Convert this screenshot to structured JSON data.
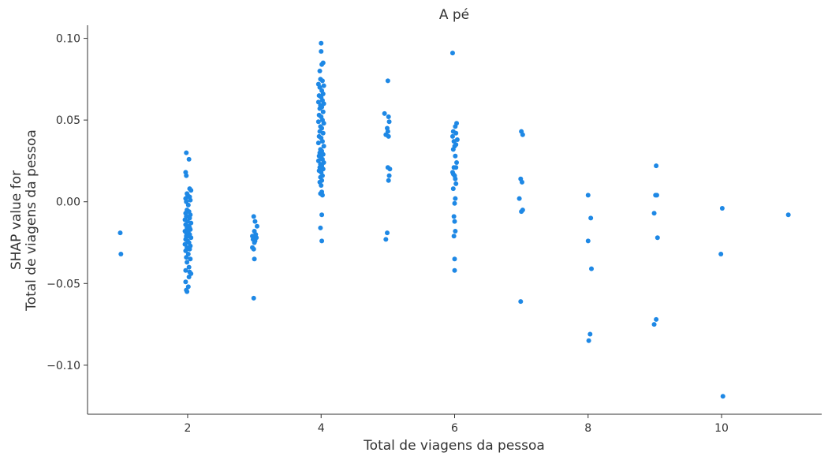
{
  "chart_data": {
    "type": "scatter",
    "title": "A pé",
    "xlabel": "Total de viagens da pessoa",
    "ylabel_lines": [
      "SHAP value for",
      "Total de viagens da pessoa"
    ],
    "xlim": [
      0.5,
      11.5
    ],
    "ylim": [
      -0.13,
      0.108
    ],
    "xticks": [
      2,
      4,
      6,
      8,
      10
    ],
    "xtick_labels": [
      "2",
      "4",
      "6",
      "8",
      "10"
    ],
    "yticks": [
      -0.1,
      -0.05,
      0.0,
      0.05,
      0.1
    ],
    "ytick_labels": [
      "−0.10",
      "−0.05",
      "0.00",
      "0.05",
      "0.10"
    ],
    "grid": false,
    "point_color": "#1e88e5",
    "series": [
      {
        "points": [
          [
            0.99,
            -0.019
          ],
          [
            1.0,
            -0.032
          ],
          [
            1.98,
            0.03
          ],
          [
            2.02,
            0.026
          ],
          [
            1.97,
            0.018
          ],
          [
            1.98,
            0.016
          ],
          [
            2.03,
            0.008
          ],
          [
            2.05,
            0.007
          ],
          [
            1.99,
            0.005
          ],
          [
            2.0,
            0.004
          ],
          [
            2.03,
            0.003
          ],
          [
            1.97,
            0.002
          ],
          [
            2.04,
            0.001
          ],
          [
            1.98,
            0.0
          ],
          [
            2.01,
            -0.002
          ],
          [
            1.99,
            -0.005
          ],
          [
            2.02,
            -0.006
          ],
          [
            1.97,
            -0.007
          ],
          [
            2.04,
            -0.008
          ],
          [
            1.98,
            -0.009
          ],
          [
            2.03,
            -0.01
          ],
          [
            1.96,
            -0.011
          ],
          [
            2.0,
            -0.012
          ],
          [
            2.05,
            -0.013
          ],
          [
            1.97,
            -0.014
          ],
          [
            2.02,
            -0.015
          ],
          [
            1.99,
            -0.016
          ],
          [
            2.04,
            -0.017
          ],
          [
            1.96,
            -0.018
          ],
          [
            2.01,
            -0.019
          ],
          [
            2.03,
            -0.02
          ],
          [
            1.98,
            -0.021
          ],
          [
            2.05,
            -0.022
          ],
          [
            1.97,
            -0.023
          ],
          [
            2.0,
            -0.024
          ],
          [
            2.02,
            -0.025
          ],
          [
            1.96,
            -0.026
          ],
          [
            2.04,
            -0.027
          ],
          [
            1.99,
            -0.028
          ],
          [
            2.03,
            -0.029
          ],
          [
            1.97,
            -0.03
          ],
          [
            2.01,
            -0.032
          ],
          [
            1.98,
            -0.034
          ],
          [
            2.04,
            -0.035
          ],
          [
            1.99,
            -0.037
          ],
          [
            2.02,
            -0.04
          ],
          [
            1.97,
            -0.042
          ],
          [
            2.03,
            -0.043
          ],
          [
            2.05,
            -0.044
          ],
          [
            2.02,
            -0.046
          ],
          [
            1.97,
            -0.049
          ],
          [
            2.01,
            -0.052
          ],
          [
            1.98,
            -0.054
          ],
          [
            1.99,
            -0.055
          ],
          [
            2.02,
            -0.02
          ],
          [
            1.98,
            -0.019
          ],
          [
            2.0,
            -0.018
          ],
          [
            2.01,
            -0.021
          ],
          [
            2.03,
            -0.016
          ],
          [
            2.99,
            -0.009
          ],
          [
            3.01,
            -0.012
          ],
          [
            3.04,
            -0.015
          ],
          [
            3.0,
            -0.018
          ],
          [
            3.02,
            -0.02
          ],
          [
            2.97,
            -0.021
          ],
          [
            3.03,
            -0.022
          ],
          [
            2.98,
            -0.023
          ],
          [
            3.01,
            -0.024
          ],
          [
            3.0,
            -0.025
          ],
          [
            2.97,
            -0.028
          ],
          [
            2.99,
            -0.029
          ],
          [
            3.0,
            -0.035
          ],
          [
            2.99,
            -0.059
          ],
          [
            4.0,
            0.097
          ],
          [
            4.0,
            0.092
          ],
          [
            4.03,
            0.085
          ],
          [
            4.01,
            0.084
          ],
          [
            3.98,
            0.08
          ],
          [
            3.99,
            0.075
          ],
          [
            4.02,
            0.074
          ],
          [
            3.96,
            0.072
          ],
          [
            4.04,
            0.071
          ],
          [
            3.98,
            0.07
          ],
          [
            4.01,
            0.068
          ],
          [
            4.03,
            0.066
          ],
          [
            3.97,
            0.065
          ],
          [
            4.0,
            0.064
          ],
          [
            4.02,
            0.062
          ],
          [
            3.96,
            0.061
          ],
          [
            4.04,
            0.06
          ],
          [
            3.99,
            0.059
          ],
          [
            4.01,
            0.058
          ],
          [
            3.98,
            0.057
          ],
          [
            4.03,
            0.055
          ],
          [
            3.97,
            0.053
          ],
          [
            4.0,
            0.052
          ],
          [
            4.02,
            0.05
          ],
          [
            3.96,
            0.049
          ],
          [
            4.04,
            0.048
          ],
          [
            3.99,
            0.046
          ],
          [
            4.01,
            0.045
          ],
          [
            3.98,
            0.043
          ],
          [
            4.03,
            0.042
          ],
          [
            3.97,
            0.04
          ],
          [
            4.0,
            0.039
          ],
          [
            4.02,
            0.037
          ],
          [
            3.96,
            0.036
          ],
          [
            4.04,
            0.034
          ],
          [
            3.99,
            0.032
          ],
          [
            4.01,
            0.031
          ],
          [
            3.98,
            0.03
          ],
          [
            4.03,
            0.029
          ],
          [
            3.97,
            0.028
          ],
          [
            4.0,
            0.027
          ],
          [
            4.02,
            0.026
          ],
          [
            3.96,
            0.025
          ],
          [
            4.04,
            0.024
          ],
          [
            3.99,
            0.023
          ],
          [
            4.01,
            0.022
          ],
          [
            3.98,
            0.021
          ],
          [
            4.03,
            0.02
          ],
          [
            3.97,
            0.019
          ],
          [
            4.0,
            0.018
          ],
          [
            4.02,
            0.016
          ],
          [
            3.99,
            0.015
          ],
          [
            4.01,
            0.013
          ],
          [
            3.98,
            0.012
          ],
          [
            4.0,
            0.01
          ],
          [
            4.01,
            0.006
          ],
          [
            3.99,
            0.005
          ],
          [
            4.02,
            0.004
          ],
          [
            4.01,
            -0.008
          ],
          [
            3.99,
            -0.016
          ],
          [
            4.01,
            -0.024
          ],
          [
            4.95,
            0.054
          ],
          [
            5.0,
            0.074
          ],
          [
            5.01,
            0.052
          ],
          [
            5.02,
            0.049
          ],
          [
            4.99,
            0.045
          ],
          [
            5.0,
            0.043
          ],
          [
            4.97,
            0.041
          ],
          [
            5.01,
            0.04
          ],
          [
            5.0,
            0.021
          ],
          [
            5.03,
            0.02
          ],
          [
            5.02,
            0.016
          ],
          [
            5.01,
            0.013
          ],
          [
            4.99,
            -0.019
          ],
          [
            4.97,
            -0.023
          ],
          [
            5.97,
            0.091
          ],
          [
            6.03,
            0.048
          ],
          [
            6.01,
            0.046
          ],
          [
            5.98,
            0.043
          ],
          [
            6.02,
            0.042
          ],
          [
            5.97,
            0.04
          ],
          [
            6.04,
            0.038
          ],
          [
            5.99,
            0.037
          ],
          [
            6.02,
            0.035
          ],
          [
            6.0,
            0.034
          ],
          [
            5.98,
            0.032
          ],
          [
            6.01,
            0.028
          ],
          [
            6.03,
            0.024
          ],
          [
            5.99,
            0.021
          ],
          [
            6.02,
            0.021
          ],
          [
            5.97,
            0.018
          ],
          [
            5.98,
            0.017
          ],
          [
            6.0,
            0.016
          ],
          [
            6.01,
            0.014
          ],
          [
            6.02,
            0.011
          ],
          [
            5.98,
            0.008
          ],
          [
            6.01,
            0.002
          ],
          [
            6.0,
            -0.001
          ],
          [
            5.99,
            -0.009
          ],
          [
            6.0,
            -0.012
          ],
          [
            6.01,
            -0.018
          ],
          [
            5.99,
            -0.021
          ],
          [
            6.0,
            -0.035
          ],
          [
            6.0,
            -0.042
          ],
          [
            7.0,
            0.043
          ],
          [
            7.02,
            0.041
          ],
          [
            6.99,
            0.014
          ],
          [
            7.01,
            0.012
          ],
          [
            6.97,
            0.002
          ],
          [
            7.02,
            -0.005
          ],
          [
            7.0,
            -0.006
          ],
          [
            6.99,
            -0.061
          ],
          [
            8.0,
            0.004
          ],
          [
            8.04,
            -0.01
          ],
          [
            8.0,
            -0.024
          ],
          [
            8.05,
            -0.041
          ],
          [
            8.03,
            -0.081
          ],
          [
            8.01,
            -0.085
          ],
          [
            9.02,
            0.022
          ],
          [
            9.01,
            0.004
          ],
          [
            9.03,
            0.004
          ],
          [
            8.99,
            -0.007
          ],
          [
            9.04,
            -0.022
          ],
          [
            9.02,
            -0.072
          ],
          [
            8.99,
            -0.075
          ],
          [
            10.01,
            -0.004
          ],
          [
            9.99,
            -0.032
          ],
          [
            10.02,
            -0.119
          ],
          [
            11.0,
            -0.008
          ]
        ]
      }
    ]
  }
}
